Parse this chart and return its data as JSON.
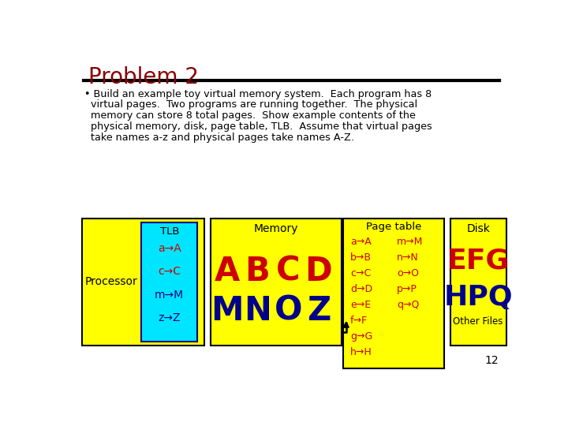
{
  "title": "Problem 2",
  "title_color": "#8b0000",
  "bg_color": "#ffffff",
  "bullet_line1": "• Build an example toy virtual memory system.  Each program has 8",
  "bullet_line2": "  virtual pages.  Two programs are running together.  The physical",
  "bullet_line3": "  memory can store 8 total pages.  Show example contents of the",
  "bullet_line4": "  physical memory, disk, page table, TLB.  Assume that virtual pages",
  "bullet_line5": "  take names a-z and physical pages take names A-Z.",
  "yellow": "#ffff00",
  "cyan": "#00e5ff",
  "red": "#cc0000",
  "blue": "#00008b",
  "black": "#000000",
  "page_number": "12",
  "processor_label": "Processor",
  "tlb_label": "TLB",
  "tlb_entries": [
    "a→A",
    "c→C",
    "m→M",
    "z→Z"
  ],
  "tlb_colors": [
    "#cc0000",
    "#cc0000",
    "#00008b",
    "#00008b"
  ],
  "memory_label": "Memory",
  "memory_row1": [
    "A",
    "B",
    "C",
    "D"
  ],
  "memory_row2": [
    "M",
    "N",
    "O",
    "Z"
  ],
  "page_table_label": "Page table",
  "page_table_col1": [
    "a→A",
    "b→B",
    "c→C",
    "d→D",
    "e→E",
    "f→F",
    "g→G",
    "h→H"
  ],
  "page_table_col2": [
    "m→M",
    "n→N",
    "o→O",
    "p→P",
    "q→Q"
  ],
  "disk_label": "Disk",
  "disk_row1": "EFG",
  "disk_row2": "HPQ",
  "disk_other": "Other Files"
}
